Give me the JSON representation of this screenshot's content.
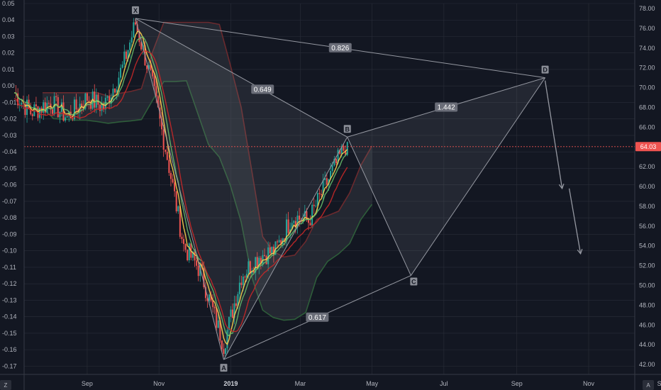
{
  "colors": {
    "background": "#131722",
    "grid": "#2a2e39",
    "axis_text": "#b2b5be",
    "candle_up": "#26a69a",
    "candle_down": "#ef5350",
    "ma_fast": "#ffd54f",
    "ma_mid": "#66bb6a",
    "ma_slow": "#c62828",
    "cloud_green": "#2e5d3a",
    "cloud_red": "#6b2a2e",
    "pattern": "#9598a1",
    "price_line": "#ef5350"
  },
  "chart_data": {
    "type": "line",
    "title": "",
    "left_axis": {
      "ticks": [
        "0.05",
        "0.04",
        "0.03",
        "0.02",
        "0.01",
        "0.00",
        "-0.01",
        "-0.02",
        "-0.03",
        "-0.04",
        "-0.05",
        "-0.06",
        "-0.07",
        "-0.08",
        "-0.09",
        "-0.10",
        "-0.11",
        "-0.12",
        "-0.13",
        "-0.14",
        "-0.15",
        "-0.16",
        "-0.17"
      ],
      "ylim": [
        -0.175,
        0.05
      ]
    },
    "right_axis": {
      "ticks": [
        "78.00",
        "76.00",
        "74.00",
        "72.00",
        "70.00",
        "68.00",
        "66.00",
        "64.00",
        "62.00",
        "60.00",
        "58.00",
        "56.00",
        "54.00",
        "52.00",
        "50.00",
        "48.00",
        "46.00",
        "44.00",
        "42.00"
      ],
      "ylim": [
        41.0,
        78.5
      ]
    },
    "x_axis": {
      "tick_labels": [
        "Sep",
        "Nov",
        "2019",
        "Mar",
        "May",
        "Jul",
        "Sep",
        "Nov",
        "S"
      ],
      "bold_label": "2019"
    },
    "last_price": "64.03",
    "harmonic_pattern": {
      "points": [
        {
          "name": "X",
          "date": "2018-10-12",
          "value": 77.0
        },
        {
          "name": "A",
          "date": "2018-12-26",
          "value": 42.5
        },
        {
          "name": "B",
          "date": "2019-04-10",
          "value": 65.0
        },
        {
          "name": "C",
          "date": "2019-06-03",
          "value": 51.0
        },
        {
          "name": "D",
          "date": "2019-09-25",
          "value": 71.0
        }
      ],
      "ratios": [
        {
          "label": "0.649",
          "between": "XA-AB"
        },
        {
          "label": "0.826",
          "between": "X-D"
        },
        {
          "label": "1.442",
          "between": "BC-CD"
        },
        {
          "label": "0.617",
          "between": "A-C"
        }
      ]
    },
    "price_series_approx": [
      {
        "date": "2018-07-01",
        "value": 69.5
      },
      {
        "date": "2018-07-15",
        "value": 67.5
      },
      {
        "date": "2018-08-01",
        "value": 68.5
      },
      {
        "date": "2018-08-15",
        "value": 67.0
      },
      {
        "date": "2018-09-01",
        "value": 69.0
      },
      {
        "date": "2018-09-15",
        "value": 68.0
      },
      {
        "date": "2018-10-01",
        "value": 72.0
      },
      {
        "date": "2018-10-12",
        "value": 76.5
      },
      {
        "date": "2018-10-25",
        "value": 71.0
      },
      {
        "date": "2018-11-08",
        "value": 63.0
      },
      {
        "date": "2018-11-22",
        "value": 54.0
      },
      {
        "date": "2018-12-06",
        "value": 51.5
      },
      {
        "date": "2018-12-26",
        "value": 44.0
      },
      {
        "date": "2019-01-10",
        "value": 51.0
      },
      {
        "date": "2019-01-25",
        "value": 53.0
      },
      {
        "date": "2019-02-08",
        "value": 53.5
      },
      {
        "date": "2019-02-22",
        "value": 57.0
      },
      {
        "date": "2019-03-08",
        "value": 56.5
      },
      {
        "date": "2019-03-22",
        "value": 60.0
      },
      {
        "date": "2019-04-10",
        "value": 64.5
      }
    ]
  },
  "corner": {
    "left_zoom": "Z",
    "right_auto": "A"
  }
}
